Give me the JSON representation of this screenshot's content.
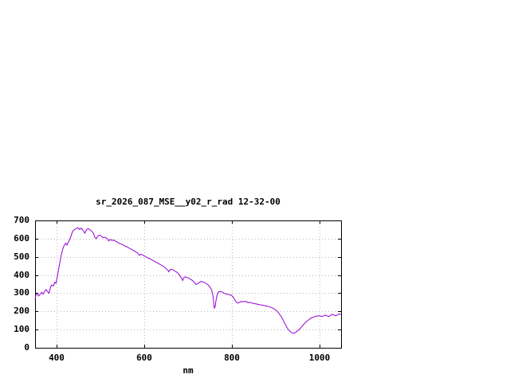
{
  "window": {
    "background_color": "#ffffff"
  },
  "chart_data": {
    "type": "line",
    "title": "sr_2026_087_MSE__y02_r_rad 12-32-00",
    "xlabel": "nm",
    "ylabel": "",
    "xlim": [
      350,
      1050
    ],
    "ylim": [
      0,
      700
    ],
    "x_ticks": [
      400,
      600,
      800,
      1000
    ],
    "y_ticks": [
      0,
      100,
      200,
      300,
      400,
      500,
      600,
      700
    ],
    "grid": true,
    "grid_color": "#b8b8b8",
    "border_color": "#000000",
    "line_color": "#9400d3",
    "legend_position": "none",
    "series": [
      {
        "name": "sr_2026_087_MSE__y02_r_rad",
        "x": [
          350,
          352,
          355,
          358,
          362,
          365,
          368,
          372,
          375,
          378,
          382,
          385,
          388,
          392,
          395,
          398,
          400,
          403,
          406,
          410,
          413,
          416,
          420,
          423,
          426,
          430,
          433,
          436,
          440,
          444,
          448,
          452,
          456,
          460,
          464,
          468,
          472,
          476,
          480,
          484,
          486,
          490,
          494,
          498,
          502,
          506,
          510,
          515,
          518,
          522,
          526,
          530,
          535,
          540,
          545,
          550,
          555,
          560,
          565,
          570,
          575,
          580,
          585,
          589,
          592,
          596,
          600,
          605,
          610,
          615,
          620,
          625,
          630,
          635,
          640,
          645,
          650,
          654,
          656,
          658,
          662,
          666,
          670,
          674,
          678,
          682,
          686,
          688,
          690,
          694,
          698,
          702,
          706,
          710,
          714,
          718,
          722,
          726,
          730,
          734,
          738,
          742,
          746,
          750,
          754,
          757,
          760,
          762,
          764,
          767,
          770,
          774,
          778,
          782,
          786,
          790,
          794,
          798,
          802,
          806,
          810,
          814,
          818,
          822,
          826,
          830,
          834,
          838,
          842,
          846,
          850,
          854,
          858,
          862,
          866,
          870,
          874,
          878,
          882,
          886,
          890,
          894,
          898,
          902,
          906,
          910,
          914,
          918,
          922,
          926,
          930,
          934,
          938,
          942,
          946,
          950,
          954,
          958,
          962,
          966,
          970,
          974,
          978,
          982,
          986,
          990,
          994,
          998,
          1002,
          1006,
          1010,
          1014,
          1018,
          1022,
          1026,
          1030,
          1034,
          1038,
          1042,
          1046,
          1050
        ],
        "y": [
          265,
          290,
          300,
          285,
          295,
          305,
          295,
          310,
          320,
          310,
          300,
          330,
          345,
          340,
          360,
          355,
          380,
          420,
          460,
          510,
          540,
          560,
          575,
          565,
          580,
          600,
          620,
          640,
          650,
          655,
          660,
          650,
          658,
          645,
          630,
          650,
          655,
          648,
          640,
          628,
          610,
          600,
          615,
          620,
          612,
          605,
          608,
          600,
          588,
          595,
          590,
          592,
          585,
          578,
          572,
          568,
          560,
          555,
          548,
          542,
          535,
          528,
          520,
          508,
          515,
          510,
          505,
          498,
          492,
          486,
          480,
          473,
          466,
          460,
          453,
          446,
          435,
          425,
          418,
          428,
          432,
          428,
          422,
          416,
          408,
          395,
          378,
          370,
          385,
          390,
          386,
          382,
          376,
          370,
          360,
          348,
          352,
          360,
          365,
          362,
          358,
          352,
          345,
          335,
          318,
          285,
          218,
          225,
          262,
          295,
          308,
          310,
          306,
          300,
          296,
          295,
          292,
          290,
          282,
          268,
          252,
          246,
          250,
          255,
          252,
          256,
          252,
          248,
          250,
          246,
          244,
          242,
          240,
          238,
          236,
          234,
          232,
          230,
          228,
          226,
          222,
          218,
          212,
          205,
          195,
          182,
          168,
          150,
          130,
          112,
          98,
          88,
          82,
          80,
          84,
          92,
          100,
          110,
          122,
          132,
          142,
          150,
          158,
          164,
          168,
          172,
          174,
          176,
          175,
          172,
          176,
          180,
          176,
          172,
          178,
          184,
          180,
          176,
          182,
          186,
          183
        ]
      }
    ]
  }
}
